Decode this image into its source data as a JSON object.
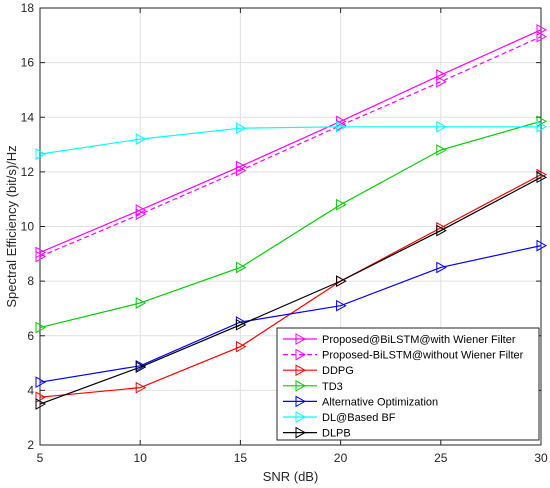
{
  "chart_data": {
    "type": "line",
    "title": "",
    "xlabel": "SNR (dB)",
    "ylabel": "Spectral Efficiency (bit/s)/Hz",
    "xlim": [
      5,
      30
    ],
    "ylim": [
      2,
      18
    ],
    "xticks": [
      5,
      10,
      15,
      20,
      25,
      30
    ],
    "yticks": [
      2,
      4,
      6,
      8,
      10,
      12,
      14,
      16,
      18
    ],
    "grid": true,
    "legend_position": "bottom-right",
    "x": [
      5,
      10,
      15,
      20,
      25,
      30
    ],
    "series": [
      {
        "name": "Proposed@BiLSTM@with Wiener Filter",
        "color": "#ff00ff",
        "dash": false,
        "values": [
          9.05,
          10.6,
          12.2,
          13.85,
          15.55,
          17.2
        ]
      },
      {
        "name": "Proposed-BiLSTM@without Wiener Filter",
        "color": "#ff00ff",
        "dash": true,
        "values": [
          8.9,
          10.45,
          12.05,
          13.7,
          15.3,
          16.95
        ]
      },
      {
        "name": "DDPG",
        "color": "#ff0000",
        "dash": false,
        "values": [
          3.75,
          4.1,
          5.6,
          8.0,
          9.95,
          11.9
        ]
      },
      {
        "name": "TD3",
        "color": "#00cc00",
        "dash": false,
        "values": [
          6.3,
          7.2,
          8.5,
          10.8,
          12.8,
          13.85
        ]
      },
      {
        "name": "Alternative Optimization",
        "color": "#0000ff",
        "dash": false,
        "values": [
          4.3,
          4.9,
          6.5,
          7.1,
          8.5,
          9.3
        ]
      },
      {
        "name": "DL@Based BF",
        "color": "#00ffff",
        "dash": false,
        "values": [
          12.65,
          13.2,
          13.6,
          13.65,
          13.65,
          13.65
        ]
      },
      {
        "name": "DLPB",
        "color": "#000000",
        "dash": false,
        "values": [
          3.5,
          4.85,
          6.4,
          8.0,
          9.85,
          11.8
        ]
      }
    ]
  }
}
